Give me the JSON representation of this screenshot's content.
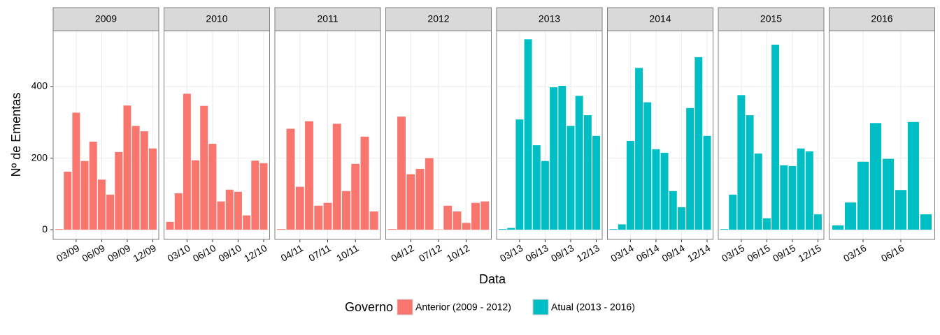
{
  "y_label": "Nº de Ementas",
  "x_label": "Data",
  "legend": {
    "title": "Governo",
    "entries": [
      {
        "name": "Anterior (2009 - 2012)",
        "color": "#F8766D"
      },
      {
        "name": "Atual (2013 - 2016)",
        "color": "#00BFC4"
      }
    ]
  },
  "chart_data": [
    {
      "type": "bar",
      "title": "2009",
      "color": "#F8766D",
      "x": [
        1,
        2,
        3,
        4,
        5,
        6,
        7,
        8,
        9,
        10,
        11,
        12
      ],
      "values": [
        2,
        162,
        327,
        192,
        246,
        140,
        98,
        217,
        347,
        290,
        275,
        227
      ],
      "xlim": [
        0.3,
        12.7
      ],
      "xticks": [
        {
          "value": 3,
          "label": "03/09"
        },
        {
          "value": 6,
          "label": "06/09"
        },
        {
          "value": 9,
          "label": "09/09"
        },
        {
          "value": 12,
          "label": "12/09"
        }
      ],
      "ylim": [
        -27,
        556
      ],
      "yticks": [
        0,
        200,
        400
      ],
      "grid": true
    },
    {
      "type": "bar",
      "title": "2010",
      "color": "#F8766D",
      "x": [
        1,
        2,
        3,
        4,
        5,
        6,
        7,
        8,
        9,
        10,
        11,
        12
      ],
      "values": [
        22,
        102,
        380,
        194,
        346,
        240,
        79,
        112,
        106,
        40,
        193,
        186
      ],
      "xlim": [
        0.3,
        12.7
      ],
      "xticks": [
        {
          "value": 3,
          "label": "03/10"
        },
        {
          "value": 6,
          "label": "06/10"
        },
        {
          "value": 9,
          "label": "09/10"
        },
        {
          "value": 12,
          "label": "12/10"
        }
      ],
      "ylim": [
        -27,
        556
      ],
      "yticks": [
        0,
        200,
        400
      ],
      "grid": true
    },
    {
      "type": "bar",
      "title": "2011",
      "color": "#F8766D",
      "x": [
        2,
        3,
        4,
        5,
        6,
        7,
        8,
        9,
        10,
        11,
        12
      ],
      "values": [
        2,
        282,
        120,
        303,
        67,
        75,
        296,
        108,
        184,
        260,
        51
      ],
      "xlim": [
        1.3,
        12.7
      ],
      "xticks": [
        {
          "value": 4,
          "label": "04/11"
        },
        {
          "value": 7,
          "label": "07/11"
        },
        {
          "value": 10,
          "label": "10/11"
        }
      ],
      "ylim": [
        -27,
        556
      ],
      "yticks": [
        0,
        200,
        400
      ],
      "grid": true
    },
    {
      "type": "bar",
      "title": "2012",
      "color": "#F8766D",
      "x": [
        2,
        3,
        4,
        5,
        6,
        7,
        8,
        9,
        10,
        11,
        12
      ],
      "values": [
        2,
        316,
        155,
        170,
        200,
        1,
        67,
        51,
        19,
        75,
        79
      ],
      "xlim": [
        1.3,
        12.7
      ],
      "xticks": [
        {
          "value": 4,
          "label": "04/12"
        },
        {
          "value": 7,
          "label": "07/12"
        },
        {
          "value": 10,
          "label": "10/12"
        }
      ],
      "ylim": [
        -27,
        556
      ],
      "yticks": [
        0,
        200,
        400
      ],
      "grid": true
    },
    {
      "type": "bar",
      "title": "2013",
      "color": "#00BFC4",
      "x": [
        1,
        2,
        3,
        4,
        5,
        6,
        7,
        8,
        9,
        10,
        11,
        12
      ],
      "values": [
        2,
        5,
        308,
        532,
        236,
        192,
        398,
        402,
        290,
        374,
        320,
        262
      ],
      "xlim": [
        0.3,
        12.7
      ],
      "xticks": [
        {
          "value": 3,
          "label": "03/13"
        },
        {
          "value": 6,
          "label": "06/13"
        },
        {
          "value": 9,
          "label": "09/13"
        },
        {
          "value": 12,
          "label": "12/13"
        }
      ],
      "ylim": [
        -27,
        556
      ],
      "yticks": [
        0,
        200,
        400
      ],
      "grid": true
    },
    {
      "type": "bar",
      "title": "2014",
      "color": "#00BFC4",
      "x": [
        1,
        2,
        3,
        4,
        5,
        6,
        7,
        8,
        9,
        10,
        11,
        12
      ],
      "values": [
        2,
        15,
        248,
        452,
        356,
        225,
        215,
        108,
        63,
        340,
        482,
        262
      ],
      "xlim": [
        0.3,
        12.7
      ],
      "xticks": [
        {
          "value": 3,
          "label": "03/14"
        },
        {
          "value": 6,
          "label": "06/14"
        },
        {
          "value": 9,
          "label": "09/14"
        },
        {
          "value": 12,
          "label": "12/14"
        }
      ],
      "ylim": [
        -27,
        556
      ],
      "yticks": [
        0,
        200,
        400
      ],
      "grid": true
    },
    {
      "type": "bar",
      "title": "2015",
      "color": "#00BFC4",
      "x": [
        1,
        2,
        3,
        4,
        5,
        6,
        7,
        8,
        9,
        10,
        11,
        12
      ],
      "values": [
        2,
        98,
        376,
        320,
        213,
        32,
        517,
        180,
        178,
        227,
        219,
        43
      ],
      "xlim": [
        0.3,
        12.7
      ],
      "xticks": [
        {
          "value": 3,
          "label": "03/15"
        },
        {
          "value": 6,
          "label": "06/15"
        },
        {
          "value": 9,
          "label": "09/15"
        },
        {
          "value": 12,
          "label": "12/15"
        }
      ],
      "ylim": [
        -27,
        556
      ],
      "yticks": [
        0,
        200,
        400
      ],
      "grid": true
    },
    {
      "type": "bar",
      "title": "2016",
      "color": "#00BFC4",
      "x": [
        1,
        2,
        3,
        4,
        5,
        6,
        7,
        8
      ],
      "values": [
        12,
        76,
        190,
        298,
        198,
        111,
        301,
        43
      ],
      "xlim": [
        0.3,
        8.7
      ],
      "xticks": [
        {
          "value": 3,
          "label": "03/16"
        },
        {
          "value": 6,
          "label": "06/16"
        }
      ],
      "ylim": [
        -27,
        556
      ],
      "yticks": [
        0,
        200,
        400
      ],
      "grid": true
    }
  ]
}
